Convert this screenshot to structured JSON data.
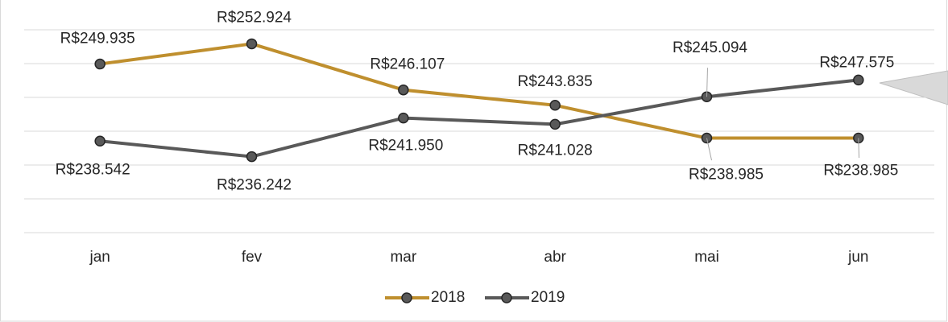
{
  "chart_data": {
    "type": "line",
    "categories": [
      "jan",
      "fev",
      "mar",
      "abr",
      "mai",
      "jun"
    ],
    "series": [
      {
        "name": "2018",
        "color": "#bf8f2e",
        "values": [
          249935,
          252924,
          246107,
          243835,
          238985,
          238985
        ],
        "value_labels": [
          "R$249.935",
          "R$252.924",
          "R$246.107",
          "R$243.835",
          "R$238.985",
          "R$238.985"
        ]
      },
      {
        "name": "2019",
        "color": "#595959",
        "values": [
          238542,
          236242,
          241950,
          241028,
          245094,
          247575
        ],
        "value_labels": [
          "R$238.542",
          "R$236.242",
          "R$241.950",
          "R$241.028",
          "R$245.094",
          "R$247.575"
        ]
      }
    ],
    "marker_color": "#595959",
    "ylim": [
      225000,
      255000
    ],
    "yticks": [
      225000,
      230000,
      235000,
      240000,
      245000,
      250000,
      255000
    ],
    "grid": true,
    "legend": "bottom"
  }
}
